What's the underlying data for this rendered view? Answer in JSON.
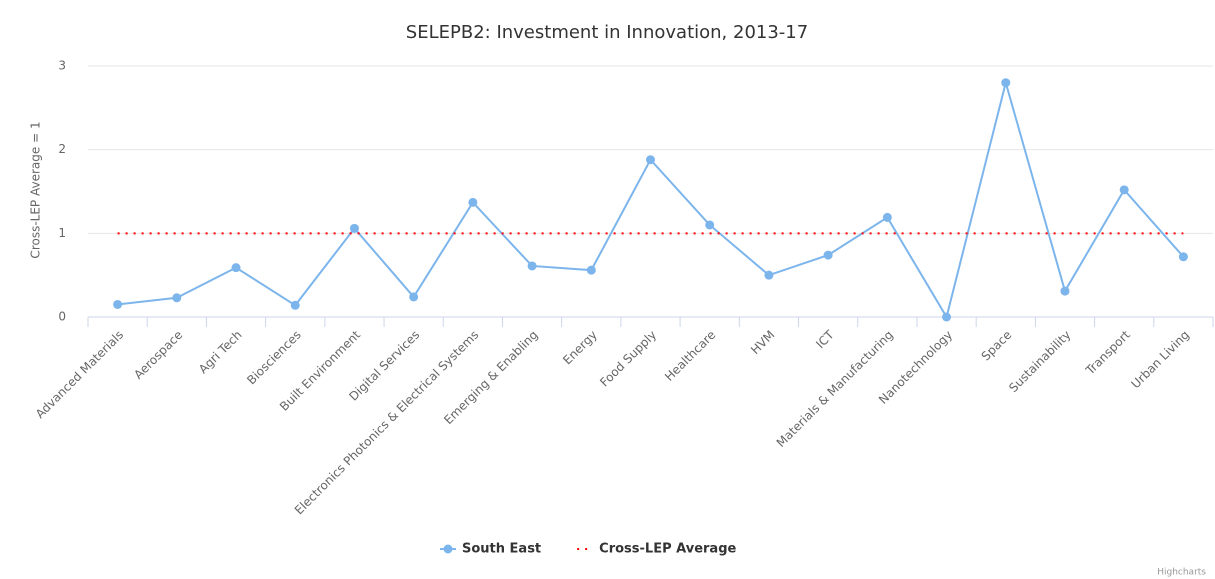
{
  "chart_data": {
    "type": "line",
    "title": "SELEPB2: Investment in Innovation, 2013-17",
    "y_axis_label": "Cross-LEP Average = 1",
    "credits": "Highcharts",
    "categories": [
      "Advanced Materials",
      "Aerospace",
      "Agri Tech",
      "Biosciences",
      "Built Environment",
      "Digital Services",
      "Electronics Photonics & Electrical Systems",
      "Emerging & Enabling",
      "Energy",
      "Food Supply",
      "Healthcare",
      "HVM",
      "ICT",
      "Materials & Manufacturing",
      "Nanotechnology",
      "Space",
      "Sustainability",
      "Transport",
      "Urban Living"
    ],
    "series": [
      {
        "name": "South East",
        "color": "#7cb5ec",
        "style": "solid-marker",
        "values": [
          0.15,
          0.23,
          0.59,
          0.14,
          1.06,
          0.24,
          1.37,
          0.61,
          0.56,
          1.88,
          1.1,
          0.5,
          0.74,
          1.19,
          0,
          2.8,
          0.31,
          1.52,
          0.72
        ]
      },
      {
        "name": "Cross-LEP Average",
        "color": "#ff0000",
        "style": "dotted",
        "values": [
          1,
          1,
          1,
          1,
          1,
          1,
          1,
          1,
          1,
          1,
          1,
          1,
          1,
          1,
          1,
          1,
          1,
          1,
          1
        ]
      }
    ],
    "ylim": [
      0,
      3
    ],
    "yticks": [
      0,
      1,
      2,
      3
    ],
    "grid": true,
    "legend": "bottom"
  }
}
